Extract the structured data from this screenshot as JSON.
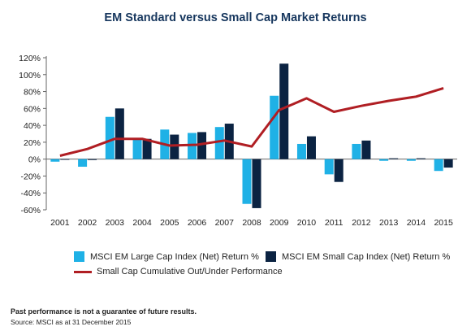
{
  "chart_data": {
    "type": "bar",
    "title": "EM Standard versus Small Cap Market Returns",
    "categories": [
      "2001",
      "2002",
      "2003",
      "2004",
      "2005",
      "2006",
      "2007",
      "2008",
      "2009",
      "2010",
      "2011",
      "2012",
      "2013",
      "2014",
      "2015"
    ],
    "series": [
      {
        "name": "MSCI EM Large Cap Index (Net) Return %",
        "kind": "bar",
        "color": "#1fb1e6",
        "values": [
          -3,
          -9,
          50,
          24,
          35,
          31,
          38,
          -53,
          75,
          18,
          -18,
          18,
          -2,
          -2,
          -14
        ]
      },
      {
        "name": "MSCI EM Small Cap Index (Net) Return %",
        "kind": "bar",
        "color": "#0b2342",
        "values": [
          0,
          -1,
          60,
          24,
          29,
          32,
          42,
          -58,
          113,
          27,
          -27,
          22,
          1,
          1,
          -10
        ]
      },
      {
        "name": "Small Cap Cumulative Out/Under Performance",
        "kind": "line",
        "color": "#b01e23",
        "values": [
          4,
          12,
          24,
          24,
          16,
          17,
          22,
          15,
          58,
          72,
          56,
          63,
          69,
          74,
          84
        ]
      }
    ],
    "y_ticks": [
      "120%",
      "100%",
      "80%",
      "60%",
      "40%",
      "20%",
      "0%",
      "-20%",
      "-40%",
      "-60%"
    ],
    "ylim": [
      -60,
      120
    ],
    "grid": false,
    "legend_position": "bottom"
  },
  "footer": {
    "disclaimer": "Past performance is not a guarantee of future results.",
    "source": "Source: MSCI as at 31 December 2015"
  }
}
